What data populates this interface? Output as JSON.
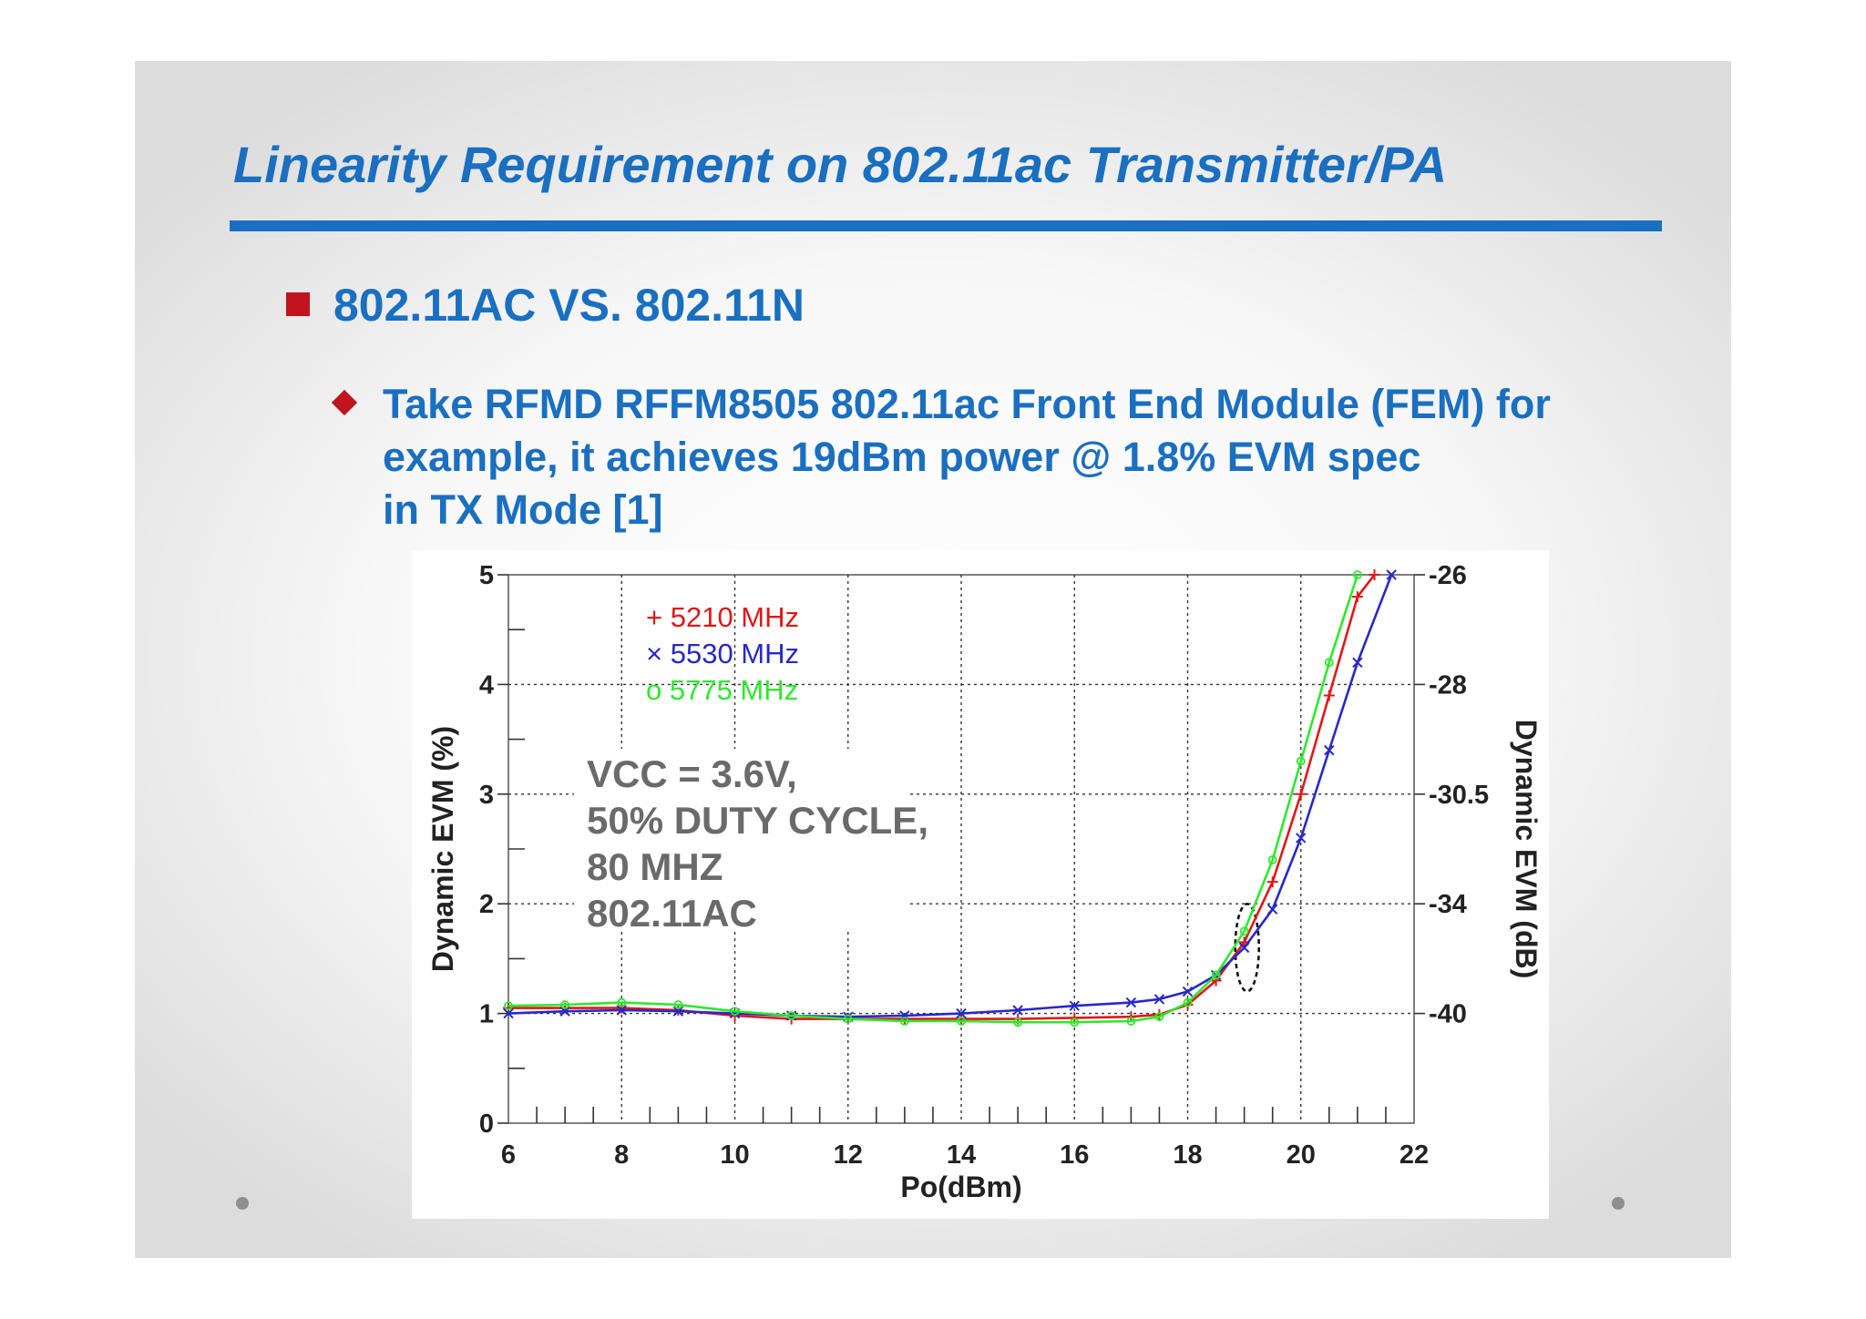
{
  "slide": {
    "title": "Linearity Requirement on 802.11ac Transmitter/PA",
    "bullet1": "802.11AC VS. 802.11N",
    "bullet2_lines": [
      "Take RFMD RFFM8505 802.11ac Front End Module (FEM) for",
      "example, it achieves 19dBm power @ 1.8% EVM spec",
      "in TX Mode [1]"
    ]
  },
  "chart_data": {
    "type": "line",
    "xlabel": "Po(dBm)",
    "ylabel": "Dynamic EVM (%)",
    "ylabel_right": "Dynamic EVM (dB)",
    "xlim": [
      6,
      22
    ],
    "ylim": [
      0,
      5
    ],
    "x_ticks": [
      "6",
      "8",
      "10",
      "12",
      "14",
      "16",
      "18",
      "20",
      "22"
    ],
    "y_ticks": [
      "0",
      "1",
      "2",
      "3",
      "4",
      "5"
    ],
    "y_ticks_right": [
      {
        "y": 1,
        "label": "-40"
      },
      {
        "y": 2,
        "label": "-34"
      },
      {
        "y": 3,
        "label": "-30.5"
      },
      {
        "y": 4,
        "label": "-28"
      },
      {
        "y": 5,
        "label": "-26"
      }
    ],
    "grid": true,
    "annotation_lines": [
      "VCC = 3.6V,",
      "50% DUTY CYCLE,",
      "80 MHZ",
      "802.11AC"
    ],
    "series": [
      {
        "name": "5210 MHz",
        "marker": "+",
        "color": "#e01818",
        "x": [
          6,
          7,
          8,
          9,
          10,
          11,
          12,
          13,
          14,
          15,
          16,
          17,
          17.5,
          18,
          18.5,
          19,
          19.5,
          20,
          20.5,
          21,
          21.3
        ],
        "y": [
          1.05,
          1.05,
          1.05,
          1.03,
          0.98,
          0.95,
          0.95,
          0.95,
          0.95,
          0.95,
          0.96,
          0.97,
          0.99,
          1.08,
          1.3,
          1.65,
          2.2,
          3.0,
          3.9,
          4.8,
          5.0
        ]
      },
      {
        "name": "5530 MHz",
        "marker": "×",
        "color": "#2828c8",
        "x": [
          6,
          7,
          8,
          9,
          10,
          11,
          12,
          13,
          14,
          15,
          16,
          17,
          17.5,
          18,
          18.5,
          19,
          19.5,
          20,
          20.5,
          21,
          21.6
        ],
        "y": [
          1.0,
          1.02,
          1.03,
          1.02,
          1.0,
          0.98,
          0.97,
          0.98,
          1.0,
          1.03,
          1.07,
          1.1,
          1.13,
          1.2,
          1.35,
          1.6,
          1.95,
          2.6,
          3.4,
          4.2,
          5.0
        ]
      },
      {
        "name": "5775 MHz",
        "marker": "o",
        "color": "#2ee82e",
        "x": [
          6,
          7,
          8,
          9,
          10,
          11,
          12,
          13,
          14,
          15,
          16,
          17,
          17.5,
          18,
          18.5,
          19,
          19.5,
          20,
          20.5,
          21
        ],
        "y": [
          1.07,
          1.08,
          1.1,
          1.08,
          1.02,
          0.98,
          0.95,
          0.93,
          0.93,
          0.92,
          0.92,
          0.93,
          0.97,
          1.1,
          1.35,
          1.75,
          2.4,
          3.3,
          4.2,
          5.0
        ]
      }
    ]
  }
}
